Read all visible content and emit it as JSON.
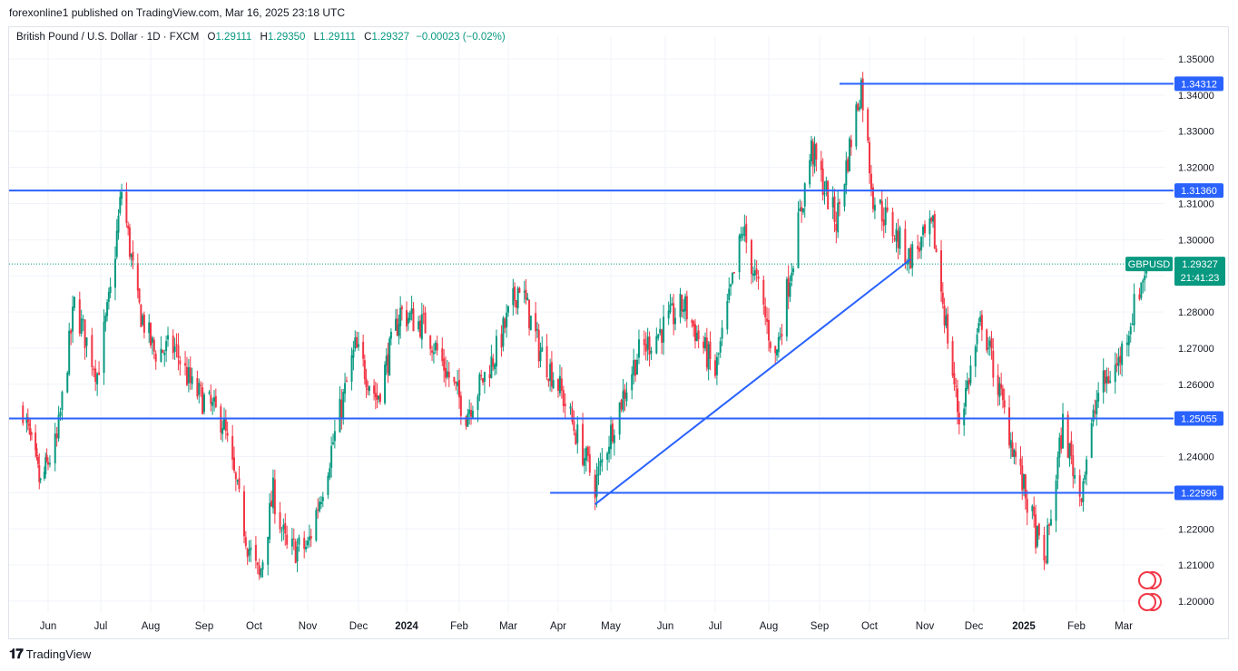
{
  "header": {
    "publish_line": "forexonline1 published on TradingView.com, Mar 16, 2025 23:18 UTC"
  },
  "legend": {
    "symbol_name": "British Pound / U.S. Dollar · 1D · FXCM",
    "open_label": "O",
    "open_value": "1.29111",
    "high_label": "H",
    "high_value": "1.29350",
    "low_label": "L",
    "low_value": "1.29111",
    "close_label": "C",
    "close_value": "1.29327",
    "change": "−0.00023 (−0.02%)"
  },
  "footer": {
    "brand": "TradingView"
  },
  "colors": {
    "up": "#089981",
    "down": "#f23645",
    "line": "#2962ff",
    "grid": "#f0f3fa",
    "price_tag": "#089981",
    "level_tag": "#2962ff"
  },
  "chart_data": {
    "type": "candlestick",
    "symbol": "GBPUSD",
    "timeframe": "1D",
    "price_axis": {
      "ticks": [
        "1.35000",
        "1.34000",
        "1.33000",
        "1.32000",
        "1.31000",
        "1.30000",
        "1.29000",
        "1.28000",
        "1.27000",
        "1.26000",
        "1.25000",
        "1.24000",
        "1.23000",
        "1.22000",
        "1.21000",
        "1.20000"
      ]
    },
    "time_axis": {
      "labels": [
        "Jun",
        "Jul",
        "Aug",
        "Sep",
        "Oct",
        "Nov",
        "Dec",
        "2024",
        "Feb",
        "Mar",
        "Apr",
        "May",
        "Jun",
        "Jul",
        "Aug",
        "Sep",
        "Oct",
        "Nov",
        "Dec",
        "2025",
        "Feb",
        "Mar"
      ],
      "bold_labels": [
        "2024",
        "2025"
      ]
    },
    "horizontal_levels": [
      {
        "value": 1.34312,
        "label": "1.34312",
        "from": "2024-09-13",
        "to": "end"
      },
      {
        "value": 1.3136,
        "label": "1.31360",
        "from": "start",
        "to": "end"
      },
      {
        "value": 1.25055,
        "label": "1.25055",
        "from": "start",
        "to": "end"
      },
      {
        "value": 1.22996,
        "label": "1.22996",
        "from": "2024-03-27",
        "to": "end"
      }
    ],
    "trendline": {
      "from_date": "2024-04-22",
      "from_price": 1.2268,
      "to_date": "2024-10-24",
      "to_price": 1.2946
    },
    "current_price": {
      "symbol_tag": "GBPUSD",
      "value": "1.29327",
      "countdown": "21:41:23"
    },
    "close_path": [
      {
        "date": "2023-05-12",
        "close": 1.2535
      },
      {
        "date": "2023-05-26",
        "close": 1.232
      },
      {
        "date": "2023-06-06",
        "close": 1.244
      },
      {
        "date": "2023-06-16",
        "close": 1.282
      },
      {
        "date": "2023-06-29",
        "close": 1.263
      },
      {
        "date": "2023-07-07",
        "close": 1.285
      },
      {
        "date": "2023-07-14",
        "close": 1.3136
      },
      {
        "date": "2023-07-24",
        "close": 1.282
      },
      {
        "date": "2023-08-03",
        "close": 1.269
      },
      {
        "date": "2023-08-15",
        "close": 1.27
      },
      {
        "date": "2023-08-25",
        "close": 1.259
      },
      {
        "date": "2023-09-12",
        "close": 1.25
      },
      {
        "date": "2023-09-27",
        "close": 1.216
      },
      {
        "date": "2023-10-04",
        "close": 1.206
      },
      {
        "date": "2023-10-12",
        "close": 1.23
      },
      {
        "date": "2023-10-20",
        "close": 1.214
      },
      {
        "date": "2023-11-01",
        "close": 1.215
      },
      {
        "date": "2023-11-14",
        "close": 1.24
      },
      {
        "date": "2023-11-29",
        "close": 1.27
      },
      {
        "date": "2023-12-13",
        "close": 1.256
      },
      {
        "date": "2023-12-28",
        "close": 1.28
      },
      {
        "date": "2024-01-12",
        "close": 1.276
      },
      {
        "date": "2024-02-05",
        "close": 1.252
      },
      {
        "date": "2024-02-22",
        "close": 1.268
      },
      {
        "date": "2024-03-08",
        "close": 1.288
      },
      {
        "date": "2024-03-20",
        "close": 1.27
      },
      {
        "date": "2024-04-01",
        "close": 1.26
      },
      {
        "date": "2024-04-22",
        "close": 1.232
      },
      {
        "date": "2024-05-03",
        "close": 1.25
      },
      {
        "date": "2024-05-16",
        "close": 1.268
      },
      {
        "date": "2024-06-12",
        "close": 1.282
      },
      {
        "date": "2024-07-01",
        "close": 1.263
      },
      {
        "date": "2024-07-17",
        "close": 1.303
      },
      {
        "date": "2024-08-05",
        "close": 1.267
      },
      {
        "date": "2024-08-27",
        "close": 1.325
      },
      {
        "date": "2024-09-11",
        "close": 1.305
      },
      {
        "date": "2024-09-26",
        "close": 1.3431
      },
      {
        "date": "2024-10-03",
        "close": 1.312
      },
      {
        "date": "2024-10-23",
        "close": 1.295
      },
      {
        "date": "2024-11-06",
        "close": 1.303
      },
      {
        "date": "2024-11-22",
        "close": 1.25
      },
      {
        "date": "2024-12-06",
        "close": 1.278
      },
      {
        "date": "2024-12-20",
        "close": 1.252
      },
      {
        "date": "2025-01-13",
        "close": 1.21
      },
      {
        "date": "2025-01-24",
        "close": 1.249
      },
      {
        "date": "2025-02-03",
        "close": 1.229
      },
      {
        "date": "2025-02-14",
        "close": 1.258
      },
      {
        "date": "2025-02-26",
        "close": 1.266
      },
      {
        "date": "2025-03-14",
        "close": 1.2933
      }
    ]
  }
}
